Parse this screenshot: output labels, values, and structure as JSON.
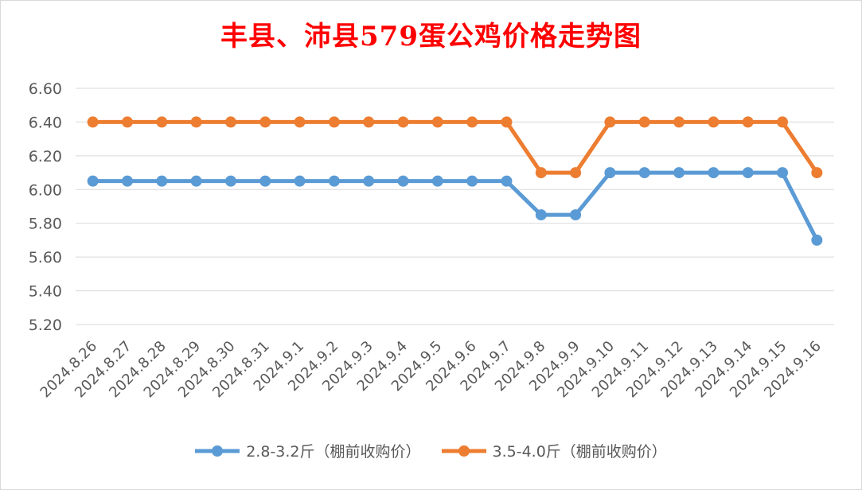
{
  "chart_data": {
    "type": "line",
    "title": "丰县、沛县579蛋公鸡价格走势图",
    "categories": [
      "2024.8.26",
      "2024.8.27",
      "2024.8.28",
      "2024.8.29",
      "2024.8.30",
      "2024.8.31",
      "2024.9.1",
      "2024.9.2",
      "2024.9.3",
      "2024.9.4",
      "2024.9.5",
      "2024.9.6",
      "2024.9.7",
      "2024.9.8",
      "2024.9.9",
      "2024.9.10",
      "2024.9.11",
      "2024.9.12",
      "2024.9.13",
      "2024.9.14",
      "2024.9.15",
      "2024.9.16"
    ],
    "series": [
      {
        "name": "2.8-3.2斤（棚前收购价）",
        "color": "#5b9bd5",
        "values": [
          6.05,
          6.05,
          6.05,
          6.05,
          6.05,
          6.05,
          6.05,
          6.05,
          6.05,
          6.05,
          6.05,
          6.05,
          6.05,
          5.85,
          5.85,
          6.1,
          6.1,
          6.1,
          6.1,
          6.1,
          6.1,
          5.7
        ]
      },
      {
        "name": "3.5-4.0斤（棚前收购价）",
        "color": "#ed7d31",
        "values": [
          6.4,
          6.4,
          6.4,
          6.4,
          6.4,
          6.4,
          6.4,
          6.4,
          6.4,
          6.4,
          6.4,
          6.4,
          6.4,
          6.1,
          6.1,
          6.4,
          6.4,
          6.4,
          6.4,
          6.4,
          6.4,
          6.1
        ]
      }
    ],
    "yticks": [
      "5.20",
      "5.40",
      "5.60",
      "5.80",
      "6.00",
      "6.20",
      "6.40",
      "6.60"
    ],
    "ylim": [
      5.2,
      6.6
    ],
    "grid": true,
    "legend_position": "bottom",
    "xlabel": "",
    "ylabel": ""
  }
}
